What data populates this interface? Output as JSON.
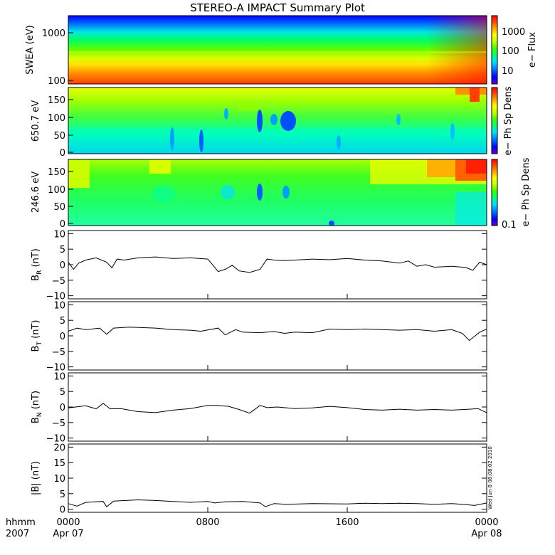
{
  "title": "STEREO-A IMPACT Summary Plot",
  "timestamp": "Wed Jun 8 08:08:02 2010",
  "x_axis": {
    "row1_labels": [
      "hhmm",
      "0000",
      "0800",
      "1600",
      "0000"
    ],
    "row2_labels": [
      "2007",
      "Apr 07",
      "Apr 08"
    ]
  },
  "colors": {
    "line": "#000000",
    "frame": "#000000",
    "colorbar": [
      "#6a00c8",
      "#0000ff",
      "#0080ff",
      "#00e0ff",
      "#00ff80",
      "#40ff00",
      "#c0ff00",
      "#ffff00",
      "#ffa000",
      "#ff4000",
      "#ff0000"
    ]
  },
  "chart_data": [
    {
      "type": "heatmap",
      "panel": "swea",
      "ylabel": "SWEA (eV)",
      "yscale": "log",
      "ylim": [
        100,
        2000
      ],
      "yticks": [
        "1000",
        "100"
      ],
      "colorbar_label": "e− Flux",
      "colorbar_ticks": [
        "1000",
        "100",
        "10"
      ]
    },
    {
      "type": "heatmap",
      "panel": "pad650",
      "ylabel": "650.7 eV",
      "ylim": [
        0,
        180
      ],
      "yticks": [
        "150",
        "100",
        "50",
        "0"
      ],
      "colorbar_label": "e− Ph Sp Dens"
    },
    {
      "type": "heatmap",
      "panel": "pad246",
      "ylabel": "246.6 eV",
      "ylim": [
        0,
        180
      ],
      "yticks": [
        "150",
        "100",
        "50",
        "0"
      ],
      "colorbar_label": "e− Ph Sp Dens",
      "colorbar_ticks": [
        "0.1"
      ]
    },
    {
      "type": "line",
      "panel": "br",
      "ylabel_main": "B",
      "ylabel_sub": "R",
      "ylabel_unit": " (nT)",
      "ylim": [
        -11,
        11
      ],
      "yticks": [
        "10",
        "5",
        "0",
        "−5",
        "−10"
      ],
      "x_hours": [
        0,
        0.3,
        0.6,
        1.0,
        1.6,
        2.2,
        2.5,
        2.8,
        3.2,
        4,
        5,
        6,
        7,
        8,
        8.6,
        9.0,
        9.4,
        9.8,
        10.4,
        11,
        11.4,
        11.8,
        12.4,
        13,
        14,
        15,
        16,
        17,
        18,
        19,
        19.5,
        20,
        20.5,
        21,
        22,
        22.8,
        23.2,
        23.6,
        24
      ],
      "y": [
        0.8,
        -1.5,
        0.5,
        1.5,
        2.2,
        0.8,
        -1.0,
        1.8,
        1.5,
        2.2,
        2.5,
        2.0,
        2.2,
        1.8,
        -2.2,
        -1.5,
        -0.2,
        -2.0,
        -2.5,
        -1.5,
        1.8,
        1.5,
        1.3,
        1.5,
        1.8,
        1.6,
        2.0,
        1.5,
        1.2,
        0.5,
        1.2,
        -0.5,
        0.0,
        -0.8,
        -0.5,
        -0.9,
        -1.8,
        0.8,
        0.0
      ]
    },
    {
      "type": "line",
      "panel": "bt",
      "ylabel_main": "B",
      "ylabel_sub": "T",
      "ylabel_unit": " (nT)",
      "ylim": [
        -11,
        11
      ],
      "yticks": [
        "10",
        "5",
        "0",
        "−5",
        "−10"
      ],
      "x_hours": [
        0,
        0.5,
        1.0,
        1.8,
        2.2,
        2.6,
        3.5,
        5,
        6,
        7,
        7.6,
        8.6,
        9.0,
        9.6,
        10,
        11,
        11.8,
        12.4,
        13,
        14,
        15,
        16,
        17,
        18,
        19,
        20,
        21,
        22,
        22.6,
        23.0,
        23.6,
        24
      ],
      "y": [
        1.5,
        2.5,
        2.0,
        2.5,
        0.5,
        2.5,
        2.8,
        2.5,
        2.0,
        1.8,
        1.5,
        2.5,
        0.3,
        2.0,
        1.2,
        1.0,
        1.4,
        0.8,
        1.2,
        1.0,
        2.2,
        2.0,
        2.2,
        2.0,
        1.8,
        2.0,
        1.5,
        2.0,
        0.8,
        -1.5,
        1.2,
        2.2
      ]
    },
    {
      "type": "line",
      "panel": "bn",
      "ylabel_main": "B",
      "ylabel_sub": "N",
      "ylabel_unit": " (nT)",
      "ylim": [
        -11,
        11
      ],
      "yticks": [
        "10",
        "5",
        "0",
        "−5",
        "−10"
      ],
      "x_hours": [
        0,
        1.0,
        1.6,
        2.0,
        2.4,
        3.0,
        4,
        5,
        6,
        7,
        8,
        8.5,
        9.2,
        9.8,
        10.4,
        11.0,
        11.4,
        12,
        13,
        14,
        15,
        16,
        17,
        18,
        19,
        20,
        21,
        22,
        23,
        23.5,
        24
      ],
      "y": [
        -0.3,
        0.4,
        -0.6,
        1.2,
        -0.6,
        -0.5,
        -1.5,
        -1.8,
        -1.0,
        -0.5,
        0.5,
        0.5,
        0.2,
        -0.8,
        -2.0,
        0.5,
        -0.2,
        0.0,
        -0.5,
        -0.3,
        0.2,
        -0.2,
        -0.8,
        -1.0,
        -0.7,
        -1.0,
        -0.8,
        -1.0,
        -0.7,
        -0.5,
        -1.8
      ]
    },
    {
      "type": "line",
      "panel": "bmag",
      "ylabel_main": "|B| (nT)",
      "ylim": [
        -1,
        21
      ],
      "yticks": [
        "20",
        "15",
        "10",
        "5",
        "0"
      ],
      "x_hours": [
        0,
        0.5,
        1.0,
        2.0,
        2.2,
        2.6,
        4,
        5,
        6,
        7,
        8,
        8.4,
        9.0,
        10,
        11.0,
        11.3,
        11.8,
        12.5,
        14,
        16,
        17,
        18,
        19,
        20,
        21,
        22,
        22.8,
        23.3,
        24
      ],
      "y": [
        1.8,
        1.0,
        2.2,
        2.5,
        0.8,
        2.6,
        3.0,
        2.8,
        2.5,
        2.2,
        2.5,
        2.0,
        2.4,
        2.5,
        2.0,
        0.8,
        1.8,
        1.6,
        1.8,
        1.7,
        1.9,
        1.8,
        1.9,
        1.8,
        1.6,
        1.8,
        1.5,
        1.2,
        2.0
      ]
    }
  ]
}
